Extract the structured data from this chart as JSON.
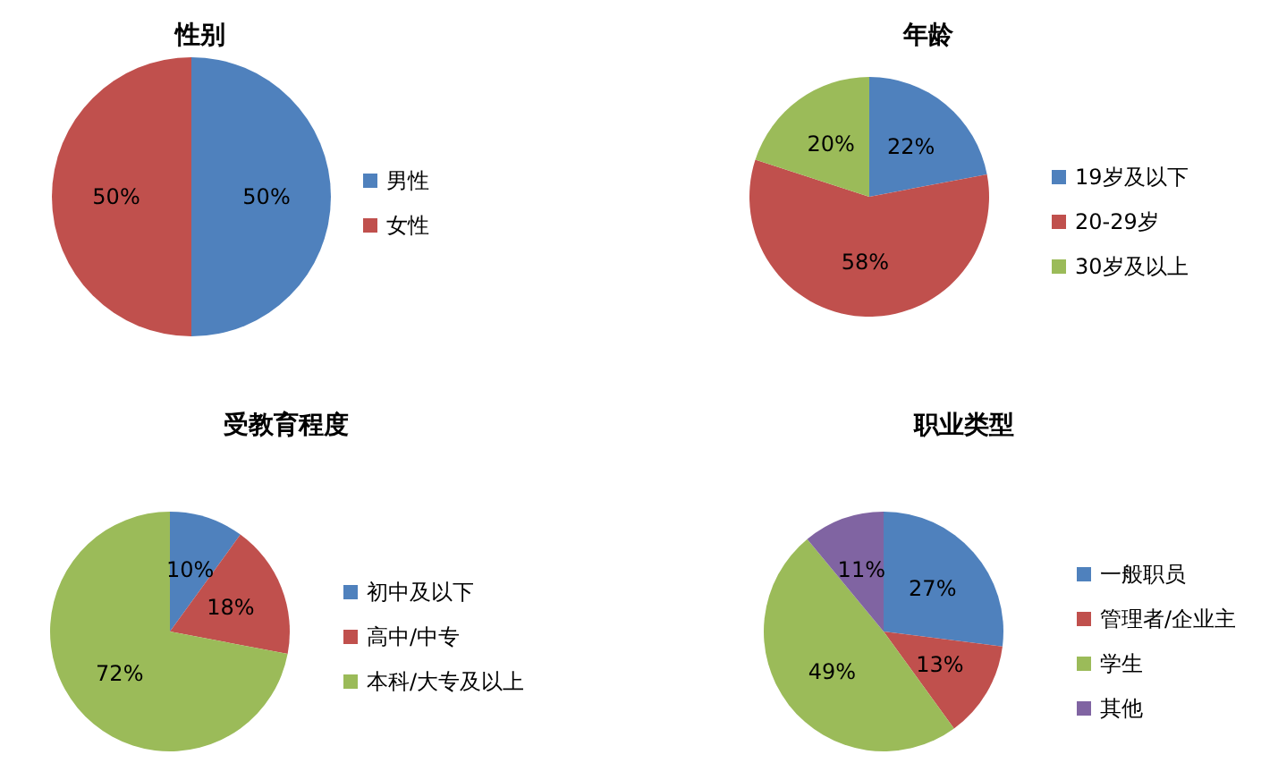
{
  "chart_data": [
    {
      "type": "pie",
      "title": "性别",
      "categories": [
        "男性",
        "女性"
      ],
      "values": [
        50,
        50
      ],
      "value_labels": [
        "50%",
        "50%"
      ],
      "colors": [
        "#4f81bd",
        "#c0504d"
      ],
      "legend": "right"
    },
    {
      "type": "pie",
      "title": "年龄",
      "categories": [
        "19岁及以下",
        "20-29岁",
        "30岁及以上"
      ],
      "values": [
        22,
        58,
        20
      ],
      "value_labels": [
        "22%",
        "58%",
        "20%"
      ],
      "colors": [
        "#4f81bd",
        "#c0504d",
        "#9bbb59"
      ],
      "legend": "right"
    },
    {
      "type": "pie",
      "title": "受教育程度",
      "categories": [
        "初中及以下",
        "高中/中专",
        "本科/大专及以上"
      ],
      "values": [
        10,
        18,
        72
      ],
      "value_labels": [
        "10%",
        "18%",
        "72%"
      ],
      "colors": [
        "#4f81bd",
        "#c0504d",
        "#9bbb59"
      ],
      "legend": "right"
    },
    {
      "type": "pie",
      "title": "职业类型",
      "categories": [
        "一般职员",
        "管理者/企业主",
        "学生",
        "其他"
      ],
      "values": [
        27,
        13,
        49,
        11
      ],
      "value_labels": [
        "27%",
        "13%",
        "49%",
        "11%"
      ],
      "colors": [
        "#4f81bd",
        "#c0504d",
        "#9bbb59",
        "#8064a2"
      ],
      "legend": "right"
    }
  ]
}
